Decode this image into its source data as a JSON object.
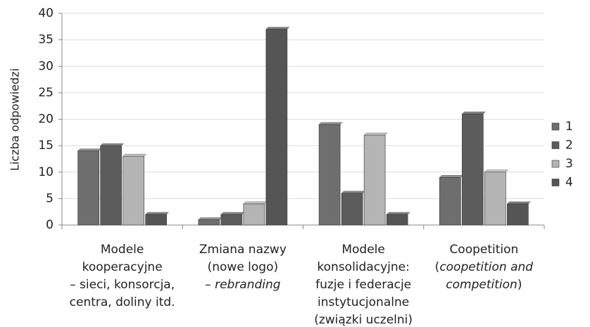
{
  "chart_data": {
    "type": "bar",
    "y_label": "Liczba odpowiedzi",
    "categories": [
      [
        [
          "Modele"
        ],
        [
          "kooperacyjne"
        ],
        [
          "– sieci, konsorcja,"
        ],
        [
          "centra, doliny itd."
        ]
      ],
      [
        [
          "Zmiana nazwy"
        ],
        [
          "(nowe logo)"
        ],
        [
          {
            "text": "– "
          },
          {
            "text": "rebranding",
            "italic": true
          }
        ]
      ],
      [
        [
          "Modele"
        ],
        [
          "konsolidacyjne:"
        ],
        [
          "fuzje i federacje"
        ],
        [
          "instytucjonalne"
        ],
        [
          "(związki uczelni)"
        ]
      ],
      [
        [
          "Coopetition"
        ],
        [
          {
            "text": "("
          },
          {
            "text": "coopetition and",
            "italic": true
          }
        ],
        [
          {
            "text": "competition",
            "italic": true
          },
          {
            "text": ")"
          }
        ]
      ]
    ],
    "series": [
      {
        "name": "1",
        "color": "#6e6e6e",
        "values": [
          14,
          1,
          19,
          9
        ]
      },
      {
        "name": "2",
        "color": "#5c5c5c",
        "values": [
          15,
          2,
          6,
          21
        ]
      },
      {
        "name": "3",
        "color": "#b4b4b4",
        "values": [
          13,
          4,
          17,
          10
        ]
      },
      {
        "name": "4",
        "color": "#555555",
        "values": [
          2,
          37,
          2,
          4
        ]
      }
    ],
    "ylim": [
      0,
      40
    ],
    "yticks": [
      0,
      5,
      10,
      15,
      20,
      25,
      30,
      35,
      40
    ],
    "grid": true,
    "legend": "right"
  }
}
